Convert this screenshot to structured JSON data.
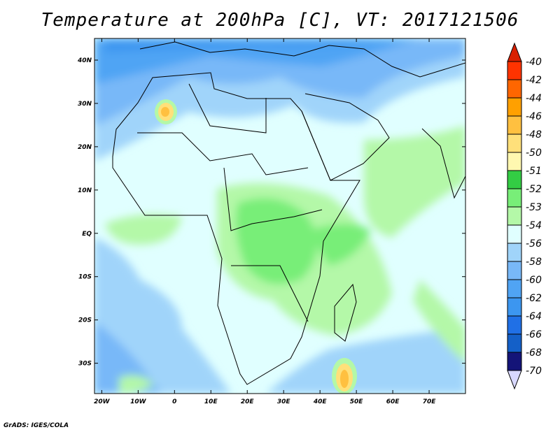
{
  "title": "Temperature at 200hPa [C], VT: 2017121506",
  "footer": "GrADS: IGES/COLA",
  "map": {
    "lat_labels": [
      "40N",
      "30N",
      "20N",
      "10N",
      "EQ",
      "10S",
      "20S",
      "30S"
    ],
    "lat_values": [
      40,
      30,
      20,
      10,
      0,
      -10,
      -20,
      -30
    ],
    "lon_labels": [
      "20W",
      "10W",
      "0",
      "10E",
      "20E",
      "30E",
      "40E",
      "50E",
      "60E",
      "70E"
    ],
    "lon_values": [
      -20,
      -10,
      0,
      10,
      20,
      30,
      40,
      50,
      60,
      70
    ],
    "lon_range": [
      -22,
      80
    ],
    "lat_range": [
      -37,
      45
    ]
  },
  "colorbar": {
    "labels": [
      "-40",
      "-42",
      "-44",
      "-46",
      "-48",
      "-50",
      "-51",
      "-52",
      "-53",
      "-54",
      "-56",
      "-58",
      "-60",
      "-62",
      "-64",
      "-66",
      "-68",
      "-70"
    ],
    "over_color": "#d92000",
    "colors": [
      "#ff3300",
      "#ff6600",
      "#ffa000",
      "#ffc040",
      "#ffe07a",
      "#fff8b0",
      "#33cc44",
      "#78ee78",
      "#b4f8a8",
      "#e0ffff",
      "#a0d4fa",
      "#78b8f8",
      "#50a4f4",
      "#3c96f0",
      "#2070e6",
      "#1460c8",
      "#141478"
    ],
    "under_color": "#d8d8ff"
  }
}
